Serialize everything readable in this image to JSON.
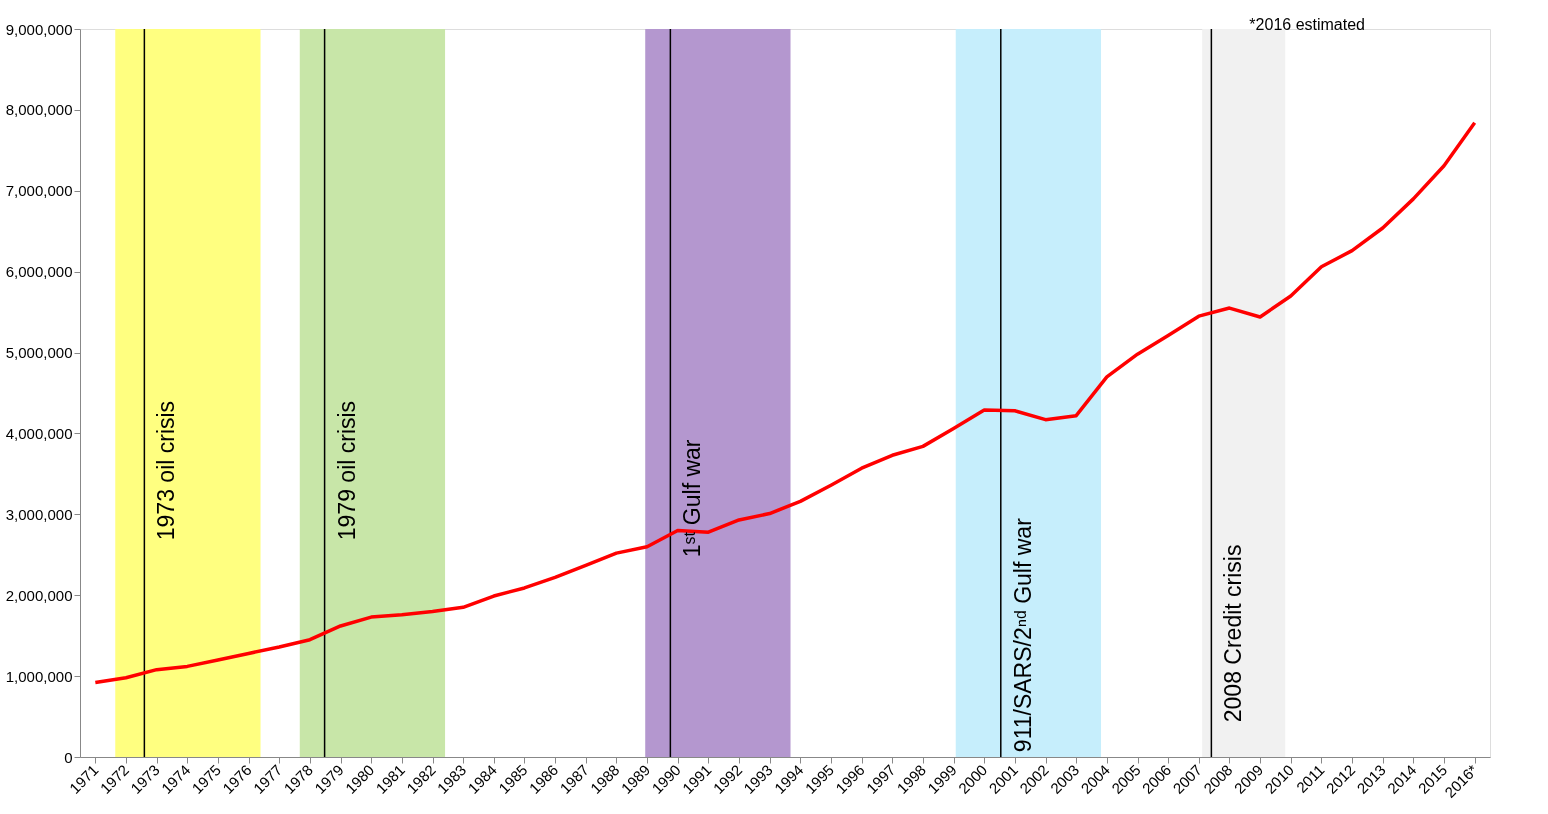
{
  "chart_data": {
    "type": "line",
    "x": [
      1971,
      1972,
      1973,
      1974,
      1975,
      1976,
      1977,
      1978,
      1979,
      1980,
      1981,
      1982,
      1983,
      1984,
      1985,
      1986,
      1987,
      1988,
      1989,
      1990,
      1991,
      1992,
      1993,
      1994,
      1995,
      1996,
      1997,
      1998,
      1999,
      2000,
      2001,
      2002,
      2003,
      2004,
      2005,
      2006,
      2007,
      2008,
      2009,
      2010,
      2011,
      2012,
      2013,
      2014,
      2015,
      2016
    ],
    "series": [
      {
        "color": "#ff0000",
        "values": [
          920000,
          980000,
          1080000,
          1120000,
          1200000,
          1280000,
          1360000,
          1450000,
          1620000,
          1730000,
          1760000,
          1800000,
          1850000,
          1990000,
          2090000,
          2220000,
          2370000,
          2520000,
          2600000,
          2800000,
          2780000,
          2930000,
          3010000,
          3160000,
          3360000,
          3570000,
          3730000,
          3840000,
          4060000,
          4290000,
          4280000,
          4170000,
          4220000,
          4700000,
          4980000,
          5210000,
          5450000,
          5550000,
          5440000,
          5700000,
          6060000,
          6260000,
          6540000,
          6900000,
          7310000,
          7840000
        ]
      }
    ],
    "xlim": [
      1970.5,
      2016.5
    ],
    "xticks": [
      1971,
      1972,
      1973,
      1974,
      1975,
      1976,
      1977,
      1978,
      1979,
      1980,
      1981,
      1982,
      1983,
      1984,
      1985,
      1986,
      1987,
      1988,
      1989,
      1990,
      1991,
      1992,
      1993,
      1994,
      1995,
      1996,
      1997,
      1998,
      1999,
      2000,
      2001,
      2002,
      2003,
      2004,
      2005,
      2006,
      2007,
      2008,
      2009,
      2010,
      2011,
      2012,
      2013,
      2014,
      2015,
      {
        "value": 2016,
        "label": "2016*"
      }
    ],
    "ylim": [
      0,
      9000000
    ],
    "yticks": [
      {
        "value": 0,
        "label": "0"
      },
      {
        "value": 1000000,
        "label": "1,000,000"
      },
      {
        "value": 2000000,
        "label": "2,000,000"
      },
      {
        "value": 3000000,
        "label": "3,000,000"
      },
      {
        "value": 4000000,
        "label": "4,000,000"
      },
      {
        "value": 5000000,
        "label": "5,000,000"
      },
      {
        "value": 6000000,
        "label": "6,000,000"
      },
      {
        "value": 7000000,
        "label": "7,000,000"
      },
      {
        "value": 8000000,
        "label": "8,000,000"
      },
      {
        "value": 9000000,
        "label": "9,000,000"
      }
    ],
    "bands": [
      {
        "axis": "x",
        "from": 1971.65,
        "to": 1976.39,
        "color": "#ffff80"
      },
      {
        "axis": "x",
        "from": 1977.67,
        "to": 1982.41,
        "color": "#c8e6a8"
      },
      {
        "axis": "x",
        "from": 1988.94,
        "to": 1993.68,
        "color": "#b497cf"
      },
      {
        "axis": "x",
        "from": 1999.07,
        "to": 2003.81,
        "color": "#c6eefc"
      },
      {
        "axis": "x",
        "from": 2007.11,
        "to": 2009.82,
        "color": "#f1f1f1"
      }
    ],
    "ref_lines": [
      {
        "axis": "x",
        "value": 1972.6,
        "color": "#000000"
      },
      {
        "axis": "x",
        "value": 1978.48,
        "color": "#000000"
      },
      {
        "axis": "x",
        "value": 1989.76,
        "color": "#000000"
      },
      {
        "axis": "x",
        "value": 2000.54,
        "color": "#000000"
      },
      {
        "axis": "x",
        "value": 2007.41,
        "color": "#000000"
      }
    ],
    "annotations": [
      {
        "text": "1973 oil crisis",
        "x": 1972.6,
        "y": 2680000
      },
      {
        "text": "1979 oil crisis",
        "x": 1978.48,
        "y": 2680000
      },
      {
        "text": "1ˢᵗ Gulf war",
        "x": 1989.76,
        "y": 2470000
      },
      {
        "text": "911/SARS/2ⁿᵈ Gulf war",
        "x": 2000.54,
        "y": 60000
      },
      {
        "text": "2008 Credit crisis",
        "x": 2007.41,
        "y": 430000
      },
      "*2016 estimated"
    ],
    "grid": false,
    "marker": "none",
    "line_style": "solid"
  }
}
